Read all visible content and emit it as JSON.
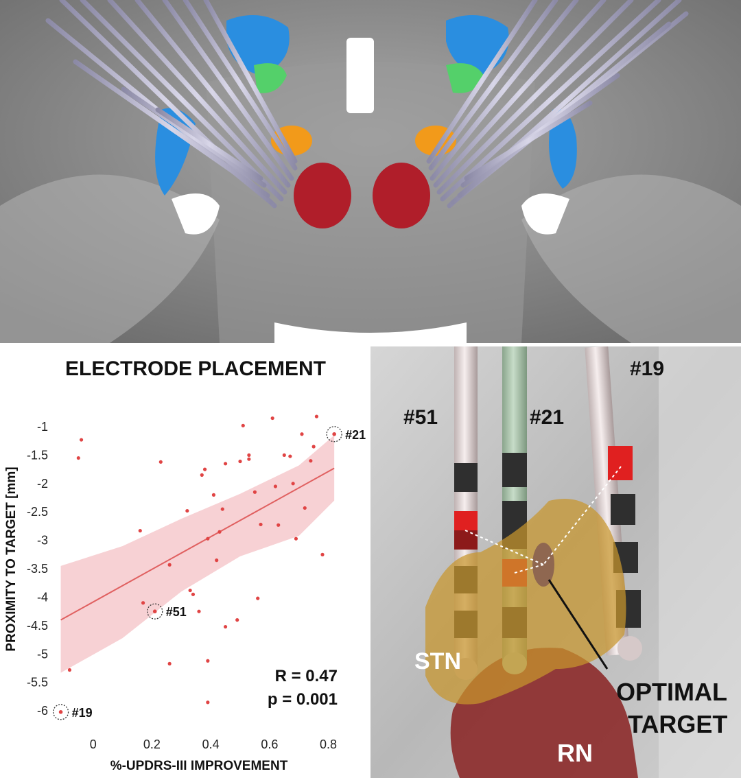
{
  "chart_data": {
    "type": "scatter",
    "title": "ELECTRODE PLACEMENT",
    "xlabel": "%-UPDRS-III IMPROVEMENT",
    "ylabel": "PROXIMITY TO TARGET [mm]",
    "xlim": [
      -0.13,
      0.85
    ],
    "ylim": [
      -6.3,
      -0.65
    ],
    "x_ticks": [
      "0",
      "0.2",
      "0.4",
      "0.6",
      "0.8"
    ],
    "x_tick_values": [
      0,
      0.2,
      0.4,
      0.6,
      0.8
    ],
    "y_ticks": [
      "-1",
      "-1.5",
      "-2",
      "-2.5",
      "-3",
      "-3.5",
      "-4",
      "-4.5",
      "-5",
      "-5.5",
      "-6"
    ],
    "y_tick_values": [
      -1,
      -1.5,
      -2,
      -2.5,
      -3,
      -3.5,
      -4,
      -4.5,
      -5,
      -5.5,
      -6
    ],
    "point_color": "#e04444",
    "fit_color": "#e06060",
    "band_color": "#f6c9cc",
    "fit_line": {
      "x": [
        -0.11,
        0.82
      ],
      "y": [
        -4.4,
        -1.73
      ]
    },
    "confidence_band": {
      "x": [
        -0.11,
        0.1,
        0.3,
        0.5,
        0.7,
        0.82
      ],
      "upper": [
        -3.45,
        -3.1,
        -2.62,
        -2.18,
        -1.68,
        -1.15
      ],
      "lower": [
        -5.33,
        -4.72,
        -3.9,
        -3.28,
        -2.92,
        -2.3
      ]
    },
    "series": [
      {
        "x": [
          -0.05,
          -0.04,
          0.16,
          0.17,
          0.23,
          0.26,
          0.26,
          0.32,
          0.33,
          0.34,
          0.36,
          0.37,
          0.38,
          0.39,
          0.39,
          0.39,
          0.41,
          0.42,
          0.43,
          0.44,
          0.45,
          0.45,
          0.49,
          0.5,
          0.51,
          0.53,
          0.53,
          0.55,
          0.56,
          0.57,
          0.61,
          0.62,
          0.63,
          0.65,
          0.67,
          0.68,
          0.69,
          0.71,
          0.72,
          0.74,
          0.75,
          0.76,
          0.78,
          -0.08
        ],
        "y": [
          -1.55,
          -1.23,
          -2.83,
          -4.1,
          -1.62,
          -3.43,
          -5.17,
          -2.48,
          -3.88,
          -3.95,
          -4.25,
          -1.85,
          -1.75,
          -2.97,
          -5.12,
          -5.85,
          -2.2,
          -3.35,
          -2.85,
          -2.45,
          -4.52,
          -1.65,
          -4.4,
          -1.61,
          -0.98,
          -1.57,
          -1.5,
          -2.15,
          -4.02,
          -2.72,
          -0.85,
          -2.05,
          -2.73,
          -1.5,
          -1.52,
          -2.0,
          -2.97,
          -1.13,
          -2.43,
          -1.6,
          -1.35,
          -0.82,
          -3.25,
          -5.28
        ]
      }
    ],
    "highlighted": [
      {
        "label": "#21",
        "x": 0.82,
        "y": -1.13
      },
      {
        "label": "#51",
        "x": 0.21,
        "y": -4.25
      },
      {
        "label": "#19",
        "x": -0.11,
        "y": -6.02
      }
    ],
    "annotations": [
      "R = 0.47",
      "p = 0.001"
    ]
  },
  "render_labels": {
    "electrode_51": "#51",
    "electrode_21": "#21",
    "electrode_19": "#19",
    "stn": "STN",
    "optimal_target_line1": "OPTIMAL",
    "optimal_target_line2": "TARGET",
    "rn": "RN"
  },
  "colors": {
    "stn_fill": "#c8962c",
    "rn_fill": "#8c2a2a",
    "electrode_shaft_white": "#efe6e6",
    "electrode_shaft_green": "#b7cfb9",
    "contact_dark": "#2f2f2f",
    "contact_red": "#e02020",
    "target_oval": "#8a6050"
  }
}
